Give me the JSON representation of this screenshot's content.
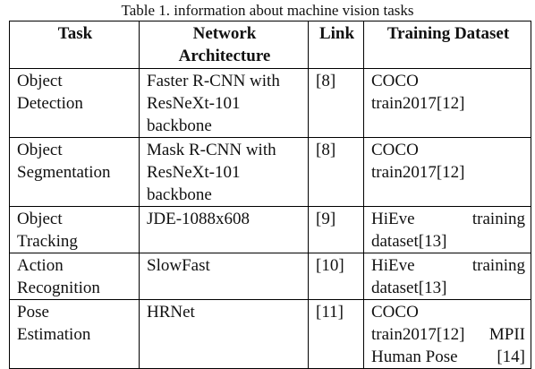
{
  "caption": "Table 1. information about machine vision tasks",
  "headers": {
    "task": "Task",
    "network_line1": "Network",
    "network_line2": "Architecture",
    "link": "Link",
    "dataset": "Training Dataset"
  },
  "rows": [
    {
      "task": [
        "Object",
        "Detection"
      ],
      "network": [
        "Faster R-CNN with",
        "ResNeXt-101",
        "backbone"
      ],
      "link": "[8]",
      "dataset": [
        "COCO",
        "train2017[12]"
      ]
    },
    {
      "task": [
        "Object",
        "Segmentation"
      ],
      "network": [
        "Mask R-CNN with",
        "ResNeXt-101",
        "backbone"
      ],
      "link": "[8]",
      "dataset": [
        "COCO",
        "train2017[12]"
      ]
    },
    {
      "task": [
        "Object",
        "Tracking"
      ],
      "network": [
        "JDE-1088x608"
      ],
      "link": "[9]",
      "dataset_split": [
        "HiEve",
        "training"
      ],
      "dataset": [
        "dataset[13]"
      ]
    },
    {
      "task": [
        "Action",
        "Recognition"
      ],
      "network": [
        "SlowFast"
      ],
      "link": "[10]",
      "dataset_split": [
        "HiEve",
        "training"
      ],
      "dataset": [
        "dataset[13]"
      ]
    },
    {
      "task": [
        "Pose",
        "Estimation"
      ],
      "network": [
        "HRNet"
      ],
      "link": "[11]",
      "dataset_split2": [
        "train2017[12]",
        "MPII"
      ],
      "dataset_split3": [
        "Human Pose",
        "[14]"
      ],
      "dataset": [
        "COCO"
      ]
    }
  ]
}
